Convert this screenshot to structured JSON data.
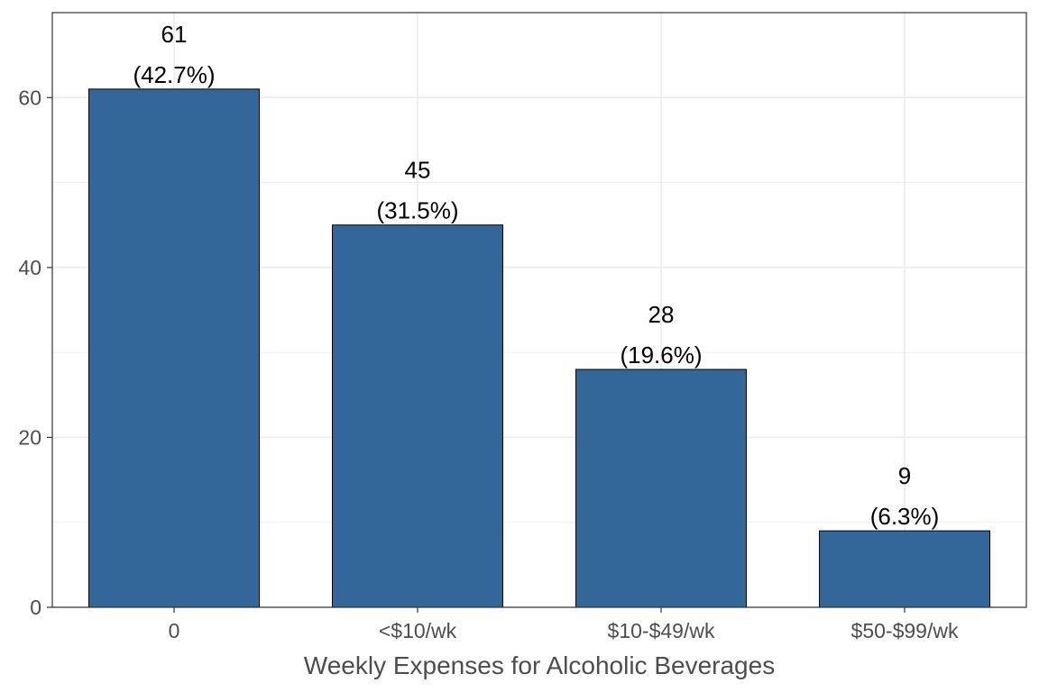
{
  "chart_data": {
    "type": "bar",
    "title": "",
    "xlabel": "Weekly Expenses for Alcoholic Beverages",
    "ylabel": "",
    "categories": [
      "0",
      "<$10/wk",
      "$10-$49/wk",
      "$50-$99/wk"
    ],
    "values": [
      61,
      45,
      28,
      9
    ],
    "percent_labels": [
      "(42.7%)",
      "(31.5%)",
      "(19.6%)",
      "(6.3%)"
    ],
    "ylim": [
      0,
      70
    ],
    "yticks": [
      0,
      20,
      40,
      60
    ],
    "grid": true,
    "legend": "none",
    "bar_color": "#336699",
    "bar_outline_color": "#000000",
    "grid_color": "#ebebeb",
    "panel_border_color": "#333333"
  }
}
